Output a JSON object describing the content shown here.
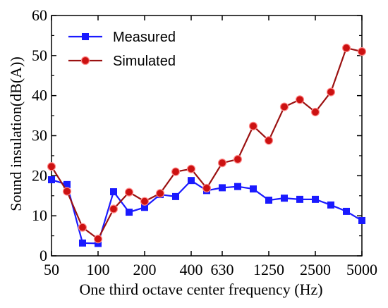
{
  "chart_data": {
    "type": "line",
    "xlabel": "One third octave center frequency (Hz)",
    "ylabel": "Sound insulation(dB(A))",
    "ylim": [
      0,
      60
    ],
    "yticks": [
      0,
      10,
      20,
      30,
      40,
      50,
      60
    ],
    "x": [
      "50",
      "63",
      "80",
      "100",
      "125",
      "160",
      "200",
      "250",
      "315",
      "400",
      "500",
      "630",
      "800",
      "1000",
      "1250",
      "1600",
      "2000",
      "2500",
      "3150",
      "4000",
      "5000"
    ],
    "xtick_labels": [
      "50",
      "100",
      "200",
      "400",
      "630",
      "1250",
      "2500",
      "5000"
    ],
    "xtick_indices": [
      0,
      3,
      6,
      9,
      11,
      14,
      17,
      20
    ],
    "grid": false,
    "legend_position": "top-left",
    "series": [
      {
        "name": "Measured",
        "color": "#1a1aff",
        "marker": "square",
        "values": [
          19.0,
          17.8,
          3.2,
          3.1,
          16.0,
          10.9,
          12.1,
          15.3,
          14.8,
          18.8,
          16.3,
          17.0,
          17.3,
          16.7,
          13.9,
          14.4,
          14.1,
          14.1,
          12.7,
          11.1,
          8.8
        ]
      },
      {
        "name": "Simulated",
        "color": "#cc1111",
        "line_color": "#9b1111",
        "marker": "circle",
        "values": [
          22.3,
          16.1,
          7.1,
          4.2,
          11.7,
          15.9,
          13.6,
          15.6,
          21.0,
          21.7,
          16.9,
          23.2,
          24.1,
          32.4,
          28.8,
          37.2,
          39.0,
          35.9,
          40.9,
          51.9,
          51.0
        ]
      }
    ]
  }
}
